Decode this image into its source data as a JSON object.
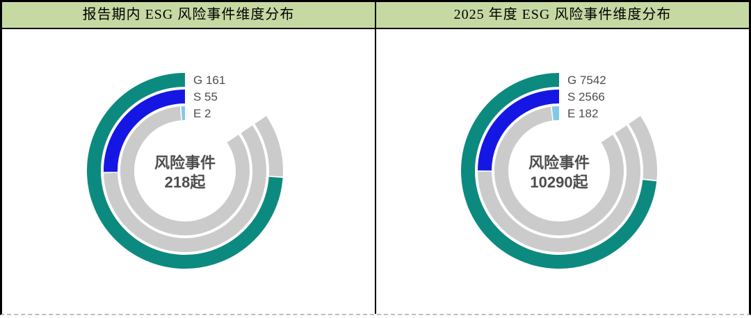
{
  "table": {
    "outer_border_color": "#000000",
    "divider_color": "#000000",
    "header_bg": "#C6D9A3",
    "bottom_dashed_color": "#BDBDBD"
  },
  "chart_style": {
    "track_color": "#CBCBCB",
    "label_color": "#4D4D4D",
    "center_text_color": "#4D4D4D",
    "background": "#FFFFFF"
  },
  "chart_data": [
    {
      "type": "pie",
      "subtype": "concentric-radial-bars",
      "title": "报告期内 ESG 风险事件维度分布",
      "center_line1": "风险事件",
      "center_line2": "218起",
      "total": 218,
      "legend_position": "top-right-inline",
      "grid": false,
      "rings": [
        {
          "name": "G",
          "value": 161,
          "label": "G 161",
          "color": "#0D8A7F"
        },
        {
          "name": "S",
          "value": 55,
          "label": "S 55",
          "color": "#1616E4"
        },
        {
          "name": "E",
          "value": 2,
          "label": "E 2",
          "color": "#82C9E8"
        }
      ]
    },
    {
      "type": "pie",
      "subtype": "concentric-radial-bars",
      "title": "2025 年度 ESG 风险事件维度分布",
      "center_line1": "风险事件",
      "center_line2": "10290起",
      "total": 10290,
      "legend_position": "top-right-inline",
      "grid": false,
      "rings": [
        {
          "name": "G",
          "value": 7542,
          "label": "G 7542",
          "color": "#0D8A7F"
        },
        {
          "name": "S",
          "value": 2566,
          "label": "S 2566",
          "color": "#1616E4"
        },
        {
          "name": "E",
          "value": 182,
          "label": "E 182",
          "color": "#82C9E8"
        }
      ]
    }
  ]
}
